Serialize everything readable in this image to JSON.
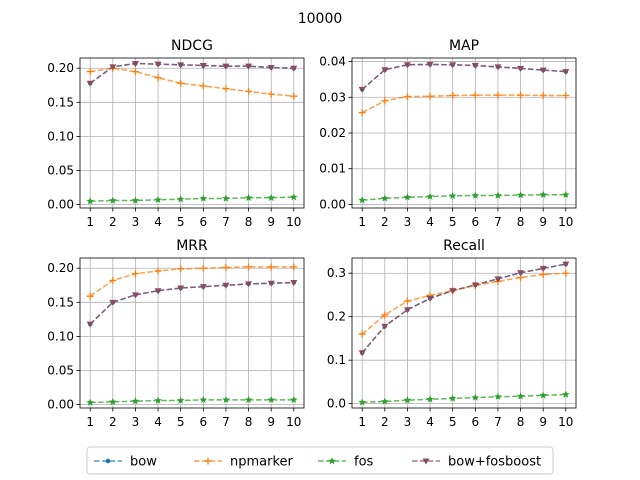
{
  "suptitle": "10000",
  "colors": {
    "bow": "#1f77b4",
    "npmarker": "#ff7f0e",
    "fos": "#2ca02c",
    "bow+fosboost": "#8c4a5e"
  },
  "legend": [
    "bow",
    "npmarker",
    "fos",
    "bow+fosboost"
  ],
  "chart_data": [
    {
      "type": "line",
      "title": "NDCG",
      "x": [
        1,
        2,
        3,
        4,
        5,
        6,
        7,
        8,
        9,
        10
      ],
      "ylim": [
        -0.005,
        0.215
      ],
      "yticks": [
        "0.00",
        "0.05",
        "0.10",
        "0.15",
        "0.20"
      ],
      "series": [
        {
          "name": "bow",
          "values": [
            0.178,
            0.202,
            0.207,
            0.206,
            0.205,
            0.204,
            0.203,
            0.203,
            0.201,
            0.2
          ]
        },
        {
          "name": "npmarker",
          "values": [
            0.195,
            0.2,
            0.195,
            0.186,
            0.178,
            0.174,
            0.17,
            0.166,
            0.162,
            0.159
          ]
        },
        {
          "name": "fos",
          "values": [
            0.005,
            0.006,
            0.006,
            0.007,
            0.008,
            0.009,
            0.009,
            0.01,
            0.01,
            0.011
          ]
        },
        {
          "name": "bow+fosboost",
          "values": [
            0.178,
            0.202,
            0.207,
            0.206,
            0.205,
            0.204,
            0.203,
            0.203,
            0.201,
            0.2
          ]
        }
      ]
    },
    {
      "type": "line",
      "title": "MAP",
      "x": [
        1,
        2,
        3,
        4,
        5,
        6,
        7,
        8,
        9,
        10
      ],
      "ylim": [
        -0.001,
        0.041
      ],
      "yticks": [
        "0.00",
        "0.01",
        "0.02",
        "0.03",
        "0.04"
      ],
      "series": [
        {
          "name": "bow",
          "values": [
            0.0322,
            0.0377,
            0.0391,
            0.0392,
            0.0391,
            0.0389,
            0.0385,
            0.0381,
            0.0376,
            0.0372
          ]
        },
        {
          "name": "npmarker",
          "values": [
            0.0257,
            0.029,
            0.0302,
            0.0303,
            0.0305,
            0.0306,
            0.0306,
            0.0306,
            0.0305,
            0.0305
          ]
        },
        {
          "name": "fos",
          "values": [
            0.0012,
            0.0017,
            0.002,
            0.0022,
            0.0024,
            0.0025,
            0.0025,
            0.0026,
            0.0027,
            0.0027
          ]
        },
        {
          "name": "bow+fosboost",
          "values": [
            0.0322,
            0.0377,
            0.0391,
            0.0392,
            0.0391,
            0.0389,
            0.0385,
            0.0381,
            0.0376,
            0.0372
          ]
        }
      ]
    },
    {
      "type": "line",
      "title": "MRR",
      "x": [
        1,
        2,
        3,
        4,
        5,
        6,
        7,
        8,
        9,
        10
      ],
      "ylim": [
        -0.005,
        0.215
      ],
      "yticks": [
        "0.00",
        "0.05",
        "0.10",
        "0.15",
        "0.20"
      ],
      "series": [
        {
          "name": "bow",
          "values": [
            0.118,
            0.15,
            0.161,
            0.167,
            0.171,
            0.173,
            0.175,
            0.177,
            0.178,
            0.179
          ]
        },
        {
          "name": "npmarker",
          "values": [
            0.159,
            0.182,
            0.192,
            0.196,
            0.199,
            0.2,
            0.201,
            0.202,
            0.202,
            0.202
          ]
        },
        {
          "name": "fos",
          "values": [
            0.003,
            0.004,
            0.005,
            0.006,
            0.006,
            0.007,
            0.007,
            0.007,
            0.007,
            0.007
          ]
        },
        {
          "name": "bow+fosboost",
          "values": [
            0.118,
            0.15,
            0.161,
            0.167,
            0.171,
            0.173,
            0.175,
            0.177,
            0.178,
            0.179
          ]
        }
      ]
    },
    {
      "type": "line",
      "title": "Recall",
      "x": [
        1,
        2,
        3,
        4,
        5,
        6,
        7,
        8,
        9,
        10
      ],
      "ylim": [
        -0.01,
        0.335
      ],
      "yticks": [
        "0.0",
        "0.1",
        "0.2",
        "0.3"
      ],
      "series": [
        {
          "name": "bow",
          "values": [
            0.117,
            0.178,
            0.216,
            0.242,
            0.26,
            0.273,
            0.287,
            0.301,
            0.311,
            0.321
          ]
        },
        {
          "name": "npmarker",
          "values": [
            0.16,
            0.204,
            0.236,
            0.249,
            0.26,
            0.272,
            0.281,
            0.29,
            0.297,
            0.3
          ]
        },
        {
          "name": "fos",
          "values": [
            0.003,
            0.005,
            0.008,
            0.01,
            0.012,
            0.014,
            0.016,
            0.017,
            0.019,
            0.021
          ]
        },
        {
          "name": "bow+fosboost",
          "values": [
            0.117,
            0.178,
            0.216,
            0.242,
            0.26,
            0.273,
            0.287,
            0.301,
            0.311,
            0.321
          ]
        }
      ]
    }
  ]
}
